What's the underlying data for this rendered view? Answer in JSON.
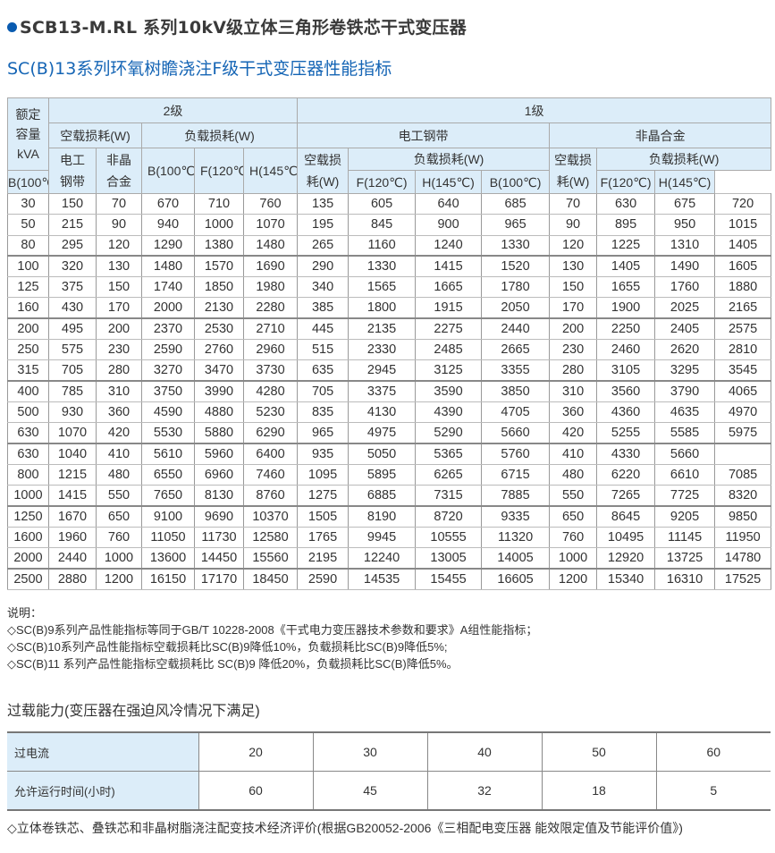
{
  "title": "SCB13-M.RL 系列10kV级立体三角形卷铁芯干式变压器",
  "subtitle": "SC(B)13系列环氧树瞻浇注F级干式变压器性能指标",
  "colors": {
    "accent": "#1565b5",
    "header_bg": "#dcedf9"
  },
  "table": {
    "header": {
      "rated_capacity": "额定容量kVA",
      "grade2": "2级",
      "grade1": "1级",
      "no_load_loss": "空载损耗(W)",
      "load_loss": "负载损耗(W)",
      "silicon_steel": "电工钢带",
      "amorphous": "非晶合金",
      "silicon_steel_short": "电工钢带",
      "amorphous_short": "非晶合金",
      "b": "B(100℃)",
      "f": "F(120℃)",
      "h": "H(145℃)",
      "no_load_short": "空载损耗(W)"
    },
    "rows": [
      [
        "30",
        "150",
        "70",
        "670",
        "710",
        "760",
        "135",
        "605",
        "640",
        "685",
        "70",
        "630",
        "675",
        "720"
      ],
      [
        "50",
        "215",
        "90",
        "940",
        "1000",
        "1070",
        "195",
        "845",
        "900",
        "965",
        "90",
        "895",
        "950",
        "1015"
      ],
      [
        "80",
        "295",
        "120",
        "1290",
        "1380",
        "1480",
        "265",
        "1160",
        "1240",
        "1330",
        "120",
        "1225",
        "1310",
        "1405"
      ],
      [
        "100",
        "320",
        "130",
        "1480",
        "1570",
        "1690",
        "290",
        "1330",
        "1415",
        "1520",
        "130",
        "1405",
        "1490",
        "1605"
      ],
      [
        "125",
        "375",
        "150",
        "1740",
        "1850",
        "1980",
        "340",
        "1565",
        "1665",
        "1780",
        "150",
        "1655",
        "1760",
        "1880"
      ],
      [
        "160",
        "430",
        "170",
        "2000",
        "2130",
        "2280",
        "385",
        "1800",
        "1915",
        "2050",
        "170",
        "1900",
        "2025",
        "2165"
      ],
      [
        "200",
        "495",
        "200",
        "2370",
        "2530",
        "2710",
        "445",
        "2135",
        "2275",
        "2440",
        "200",
        "2250",
        "2405",
        "2575"
      ],
      [
        "250",
        "575",
        "230",
        "2590",
        "2760",
        "2960",
        "515",
        "2330",
        "2485",
        "2665",
        "230",
        "2460",
        "2620",
        "2810"
      ],
      [
        "315",
        "705",
        "280",
        "3270",
        "3470",
        "3730",
        "635",
        "2945",
        "3125",
        "3355",
        "280",
        "3105",
        "3295",
        "3545"
      ],
      [
        "400",
        "785",
        "310",
        "3750",
        "3990",
        "4280",
        "705",
        "3375",
        "3590",
        "3850",
        "310",
        "3560",
        "3790",
        "4065"
      ],
      [
        "500",
        "930",
        "360",
        "4590",
        "4880",
        "5230",
        "835",
        "4130",
        "4390",
        "4705",
        "360",
        "4360",
        "4635",
        "4970"
      ],
      [
        "630",
        "1070",
        "420",
        "5530",
        "5880",
        "6290",
        "965",
        "4975",
        "5290",
        "5660",
        "420",
        "5255",
        "5585",
        "5975"
      ],
      [
        "630",
        "1040",
        "410",
        "5610",
        "5960",
        "6400",
        "935",
        "5050",
        "5365",
        "5760",
        "410",
        "4330",
        "5660",
        ""
      ],
      [
        "800",
        "1215",
        "480",
        "6550",
        "6960",
        "7460",
        "1095",
        "5895",
        "6265",
        "6715",
        "480",
        "6220",
        "6610",
        "7085"
      ],
      [
        "1000",
        "1415",
        "550",
        "7650",
        "8130",
        "8760",
        "1275",
        "6885",
        "7315",
        "7885",
        "550",
        "7265",
        "7725",
        "8320"
      ],
      [
        "1250",
        "1670",
        "650",
        "9100",
        "9690",
        "10370",
        "1505",
        "8190",
        "8720",
        "9335",
        "650",
        "8645",
        "9205",
        "9850"
      ],
      [
        "1600",
        "1960",
        "760",
        "11050",
        "11730",
        "12580",
        "1765",
        "9945",
        "10555",
        "11320",
        "760",
        "10495",
        "11145",
        "11950"
      ],
      [
        "2000",
        "2440",
        "1000",
        "13600",
        "14450",
        "15560",
        "2195",
        "12240",
        "13005",
        "14005",
        "1000",
        "12920",
        "13725",
        "14780"
      ],
      [
        "2500",
        "2880",
        "1200",
        "16150",
        "17170",
        "18450",
        "2590",
        "14535",
        "15455",
        "16605",
        "1200",
        "15340",
        "16310",
        "17525"
      ]
    ]
  },
  "notes": {
    "heading": "说明：",
    "items": [
      "◇SC(B)9系列产品性能指标等同于GB/T 10228-2008《干式电力变压器技术参数和要求》A组性能指标；",
      "◇SC(B)10系列产品性能指标空载损耗比SC(B)9降低10%，负载损耗比SC(B)9降低5%;",
      "◇SC(B)11 系列产品性能指标空载损耗比 SC(B)9 降低20%，负载损耗比SC(B)降低5%。"
    ]
  },
  "overload": {
    "title": "过载能力(变压器在强迫风冷情况下满足)",
    "rows": [
      {
        "label": "过电流",
        "values": [
          "20",
          "30",
          "40",
          "50",
          "60"
        ]
      },
      {
        "label": "允许运行时间(小时)",
        "values": [
          "60",
          "45",
          "32",
          "18",
          "5"
        ]
      }
    ]
  },
  "footer": "◇立体卷铁芯、叠铁芯和非晶树脂浇注配变技术经济评价(根据GB20052-2006《三相配电变压器 能效限定值及节能评价值》)"
}
